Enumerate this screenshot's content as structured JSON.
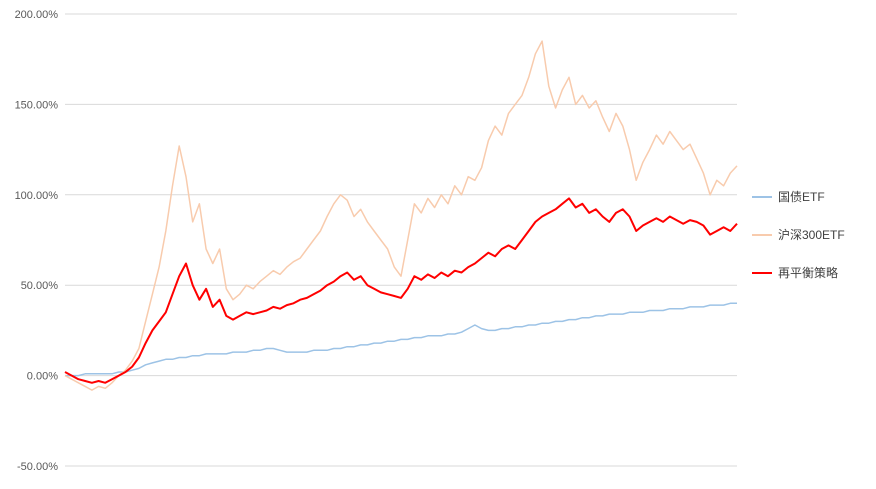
{
  "chart_data": {
    "type": "line",
    "title": "",
    "xlabel": "",
    "ylabel": "",
    "grid": true,
    "legend_position": "right",
    "ylim": [
      -50,
      200
    ],
    "yticks": [
      200,
      150,
      100,
      50,
      0,
      -50
    ],
    "ytick_labels": [
      "200.00%",
      "150.00%",
      "100.00%",
      "50.00%",
      "0.00%",
      "-50.00%"
    ],
    "series": [
      {
        "name": "国债ETF",
        "color": "#9DC3E6",
        "width": 1.5,
        "values": [
          0,
          0,
          0,
          1,
          1,
          1,
          1,
          1,
          2,
          2,
          3,
          4,
          6,
          7,
          8,
          9,
          9,
          10,
          10,
          11,
          11,
          12,
          12,
          12,
          12,
          13,
          13,
          13,
          14,
          14,
          15,
          15,
          14,
          13,
          13,
          13,
          13,
          14,
          14,
          14,
          15,
          15,
          16,
          16,
          17,
          17,
          18,
          18,
          19,
          19,
          20,
          20,
          21,
          21,
          22,
          22,
          22,
          23,
          23,
          24,
          26,
          28,
          26,
          25,
          25,
          26,
          26,
          27,
          27,
          28,
          28,
          29,
          29,
          30,
          30,
          31,
          31,
          32,
          32,
          33,
          33,
          34,
          34,
          34,
          35,
          35,
          35,
          36,
          36,
          36,
          37,
          37,
          37,
          38,
          38,
          38,
          39,
          39,
          39,
          40,
          40
        ]
      },
      {
        "name": "沪深300ETF",
        "color": "#F8CBAD",
        "width": 1.5,
        "values": [
          0,
          -2,
          -4,
          -6,
          -8,
          -6,
          -7,
          -4,
          0,
          3,
          8,
          15,
          30,
          45,
          60,
          80,
          105,
          127,
          110,
          85,
          95,
          70,
          62,
          70,
          48,
          42,
          45,
          50,
          48,
          52,
          55,
          58,
          56,
          60,
          63,
          65,
          70,
          75,
          80,
          88,
          95,
          100,
          97,
          88,
          92,
          85,
          80,
          75,
          70,
          60,
          55,
          75,
          95,
          90,
          98,
          93,
          100,
          95,
          105,
          100,
          110,
          108,
          115,
          130,
          138,
          133,
          145,
          150,
          155,
          165,
          178,
          185,
          160,
          148,
          158,
          165,
          150,
          155,
          148,
          152,
          143,
          135,
          145,
          138,
          125,
          108,
          118,
          125,
          133,
          128,
          135,
          130,
          125,
          128,
          120,
          112,
          100,
          108,
          105,
          112,
          116
        ]
      },
      {
        "name": "再平衡策略",
        "color": "#FF0000",
        "width": 2,
        "values": [
          2,
          0,
          -2,
          -3,
          -4,
          -3,
          -4,
          -2,
          0,
          2,
          5,
          10,
          18,
          25,
          30,
          35,
          45,
          55,
          62,
          50,
          42,
          48,
          38,
          42,
          33,
          31,
          33,
          35,
          34,
          35,
          36,
          38,
          37,
          39,
          40,
          42,
          43,
          45,
          47,
          50,
          52,
          55,
          57,
          53,
          55,
          50,
          48,
          46,
          45,
          44,
          43,
          48,
          55,
          53,
          56,
          54,
          57,
          55,
          58,
          57,
          60,
          62,
          65,
          68,
          66,
          70,
          72,
          70,
          75,
          80,
          85,
          88,
          90,
          92,
          95,
          98,
          93,
          95,
          90,
          92,
          88,
          85,
          90,
          92,
          88,
          80,
          83,
          85,
          87,
          85,
          88,
          86,
          84,
          86,
          85,
          83,
          78,
          80,
          82,
          80,
          84
        ]
      }
    ]
  }
}
